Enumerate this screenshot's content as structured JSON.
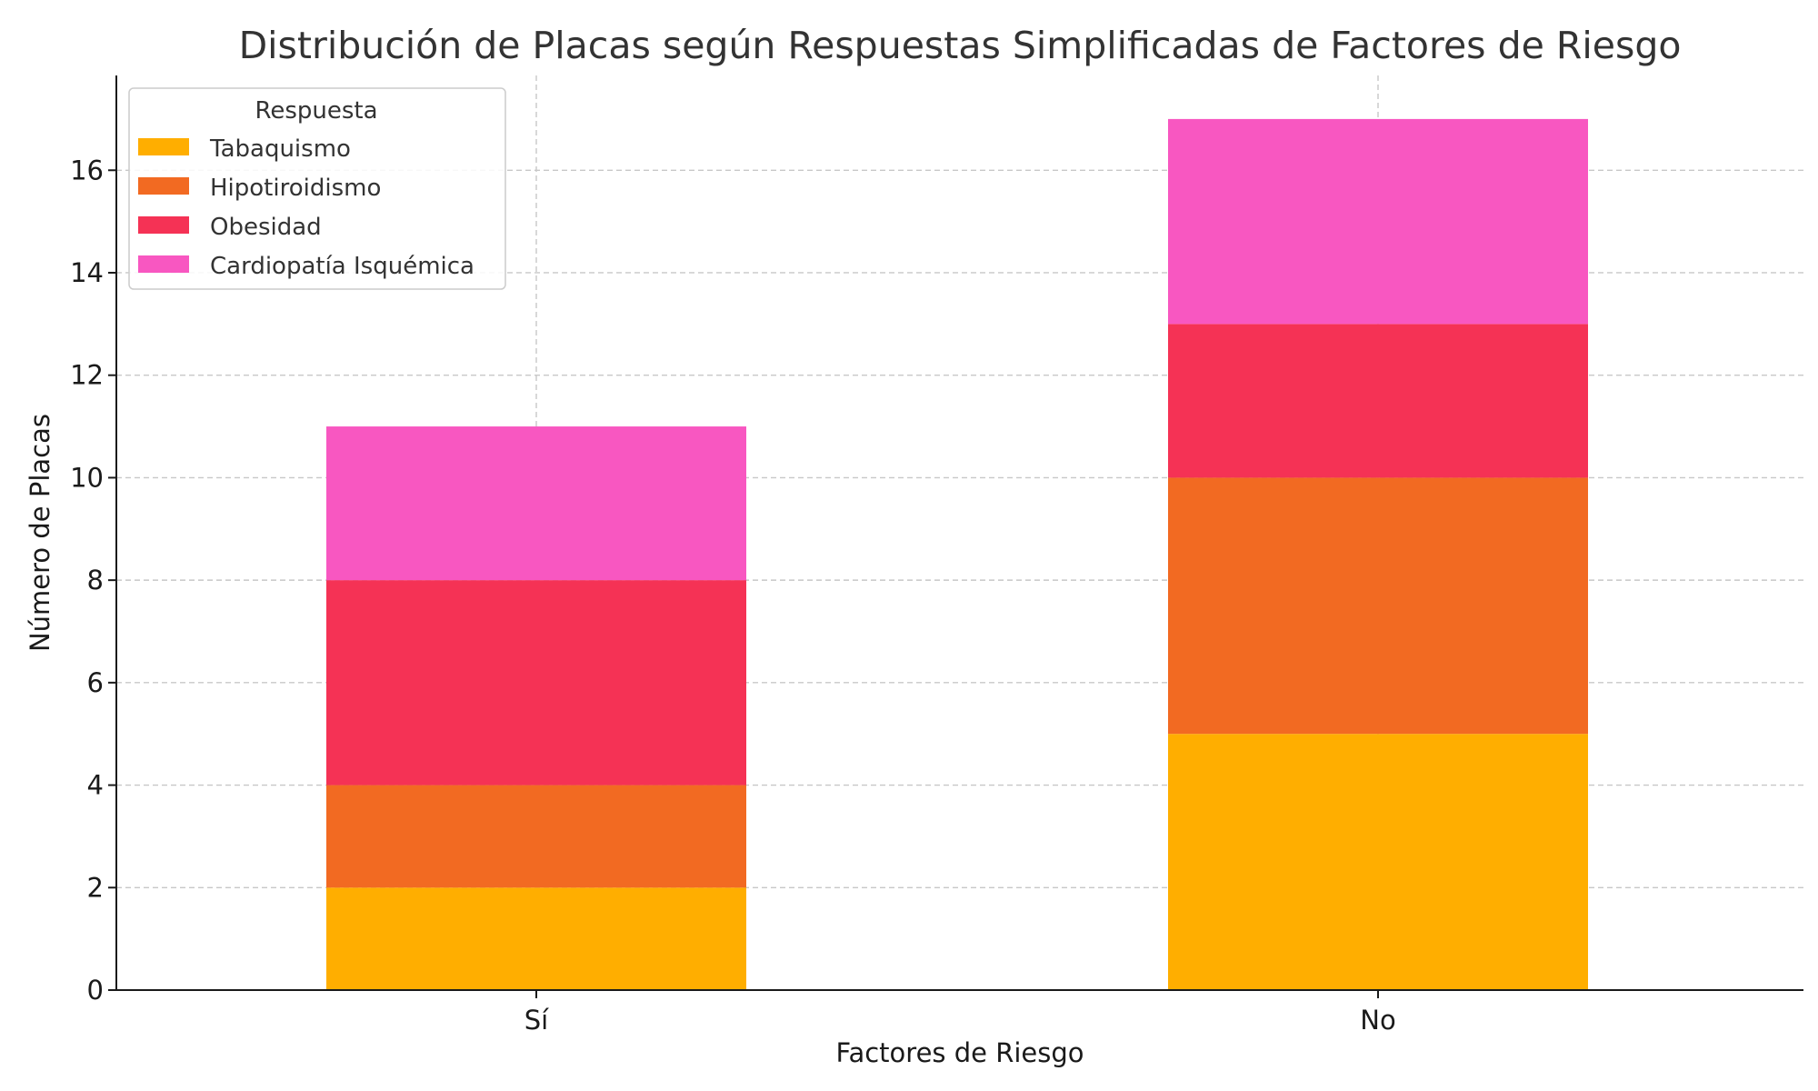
{
  "chart_data": {
    "type": "bar",
    "stacked": true,
    "title": "Distribución de Placas según Respuestas Simplificadas de Factores de Riesgo",
    "xlabel": "Factores de Riesgo",
    "ylabel": "Número de Placas",
    "categories": [
      "Sí",
      "No"
    ],
    "ylim": [
      0,
      17.85
    ],
    "yticks": [
      0,
      2,
      4,
      6,
      8,
      10,
      12,
      14,
      16
    ],
    "grid": true,
    "legend": {
      "title": "Respuesta",
      "position": "top-left"
    },
    "series": [
      {
        "name": "Tabaquismo",
        "values": [
          2,
          5
        ],
        "color": "#FFAE00"
      },
      {
        "name": "Hipotiroidismo",
        "values": [
          2,
          5
        ],
        "color": "#F26A22"
      },
      {
        "name": "Obesidad",
        "values": [
          4,
          3
        ],
        "color": "#F53255"
      },
      {
        "name": "Cardiopatía Isquémica",
        "values": [
          3,
          4
        ],
        "color": "#F857C1"
      }
    ]
  }
}
